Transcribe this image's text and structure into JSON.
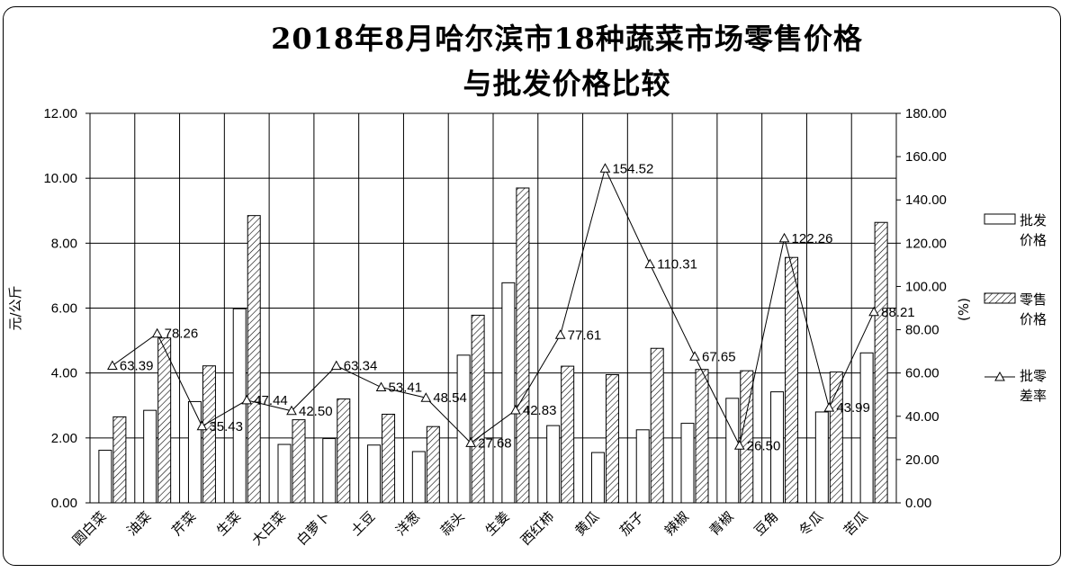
{
  "chart_data": {
    "type": "bar",
    "title_line1": "2018年8月哈尔滨市18种蔬菜市场零售价格",
    "title_line2": "与批发价格比较",
    "ylabel": "元/公斤",
    "ylabel_right": "(%)",
    "ylim": [
      0,
      12
    ],
    "ylim_right": [
      0,
      180
    ],
    "yticks": [
      "0.00",
      "2.00",
      "4.00",
      "6.00",
      "8.00",
      "10.00",
      "12.00"
    ],
    "yticks_right": [
      "0.00",
      "20.00",
      "40.00",
      "60.00",
      "80.00",
      "100.00",
      "120.00",
      "140.00",
      "160.00",
      "180.00"
    ],
    "grid": true,
    "legend_position": "right",
    "categories": [
      "圆白菜",
      "油菜",
      "芹菜",
      "生菜",
      "大白菜",
      "白萝卜",
      "土豆",
      "洋葱",
      "蒜头",
      "生姜",
      "西红柿",
      "黄瓜",
      "茄子",
      "辣椒",
      "青椒",
      "豆角",
      "冬瓜",
      "苦瓜"
    ],
    "series": [
      {
        "name_line1": "批发",
        "name_line2": "价格",
        "kind": "bar",
        "axis": "left",
        "color": "#ffffff",
        "values": [
          1.62,
          2.85,
          3.12,
          5.98,
          1.8,
          1.98,
          1.78,
          1.58,
          4.55,
          6.78,
          2.38,
          1.55,
          2.25,
          2.45,
          3.22,
          3.42,
          2.8,
          4.62
        ]
      },
      {
        "name_line1": "零售",
        "name_line2": "价格",
        "kind": "bar",
        "axis": "left",
        "color": "#ffffff",
        "values": [
          2.65,
          5.08,
          4.22,
          8.85,
          2.56,
          3.2,
          2.73,
          2.35,
          5.78,
          9.7,
          4.21,
          3.95,
          4.76,
          4.11,
          4.07,
          7.56,
          4.03,
          8.64
        ]
      },
      {
        "name_line1": "批零",
        "name_line2": "差率",
        "kind": "line",
        "axis": "right",
        "color": "#000000",
        "values": [
          63.39,
          78.26,
          35.43,
          47.44,
          42.5,
          63.34,
          53.41,
          48.54,
          27.68,
          42.83,
          77.61,
          154.52,
          110.31,
          67.65,
          26.5,
          122.26,
          43.99,
          88.21
        ],
        "labels": [
          "63.39",
          "78.26",
          "35.43",
          "47.44",
          "42.50",
          "63.34",
          "53.41",
          "48.54",
          "27.68",
          "42.83",
          "77.61",
          "154.52",
          "110.31",
          "67.65",
          "26.50",
          "122.26",
          "43.99",
          "88.21"
        ]
      }
    ]
  }
}
